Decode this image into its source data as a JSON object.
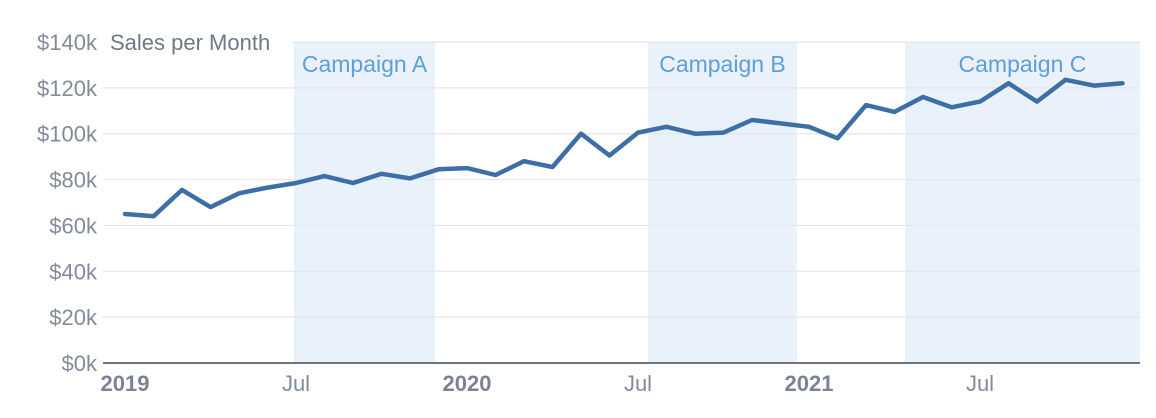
{
  "chart_data": {
    "type": "line",
    "title": "Sales per Month",
    "value_unit": "USD thousands",
    "months": [
      "Jan 2019",
      "Feb 2019",
      "Mar 2019",
      "Apr 2019",
      "May 2019",
      "Jun 2019",
      "Jul 2019",
      "Aug 2019",
      "Sep 2019",
      "Oct 2019",
      "Nov 2019",
      "Dec 2019",
      "Jan 2020",
      "Feb 2020",
      "Mar 2020",
      "Apr 2020",
      "May 2020",
      "Jun 2020",
      "Jul 2020",
      "Aug 2020",
      "Sep 2020",
      "Oct 2020",
      "Nov 2020",
      "Dec 2020",
      "Jan 2021",
      "Feb 2021",
      "Mar 2021",
      "Apr 2021",
      "May 2021",
      "Jun 2021",
      "Jul 2021",
      "Aug 2021",
      "Sep 2021",
      "Oct 2021",
      "Nov 2021",
      "Dec 2021"
    ],
    "series": [
      {
        "name": "Sales",
        "values_k": [
          65,
          64,
          75.5,
          68,
          74,
          76.5,
          78.5,
          81.5,
          78.5,
          82.5,
          80.5,
          84.5,
          85,
          82,
          88,
          85.5,
          100,
          90.5,
          100.5,
          103,
          100,
          100.5,
          106,
          104.5,
          103,
          98,
          112.5,
          109.5,
          116,
          111.5,
          114,
          122,
          114,
          123.5,
          121,
          122
        ]
      }
    ],
    "y_ticks": [
      {
        "value_k": 0,
        "label": "$0k"
      },
      {
        "value_k": 20,
        "label": "$20k"
      },
      {
        "value_k": 40,
        "label": "$40k"
      },
      {
        "value_k": 60,
        "label": "$60k"
      },
      {
        "value_k": 80,
        "label": "$80k"
      },
      {
        "value_k": 100,
        "label": "$100k"
      },
      {
        "value_k": 120,
        "label": "$120k"
      },
      {
        "value_k": 140,
        "label": "$140k"
      }
    ],
    "x_ticks": [
      {
        "month_index": 0,
        "label": "2019",
        "emphasis": true
      },
      {
        "month_index": 6,
        "label": "Jul",
        "emphasis": false
      },
      {
        "month_index": 12,
        "label": "2020",
        "emphasis": true
      },
      {
        "month_index": 18,
        "label": "Jul",
        "emphasis": false
      },
      {
        "month_index": 24,
        "label": "2021",
        "emphasis": true
      },
      {
        "month_index": 30,
        "label": "Jul",
        "emphasis": false
      }
    ],
    "bands": [
      {
        "label": "Campaign A",
        "start_month": 5.93,
        "end_month": 10.88
      },
      {
        "label": "Campaign B",
        "start_month": 18.35,
        "end_month": 23.58
      },
      {
        "label": "Campaign C",
        "start_month": 27.37,
        "end_month": 35.61
      }
    ],
    "ylim_k": [
      0,
      140
    ],
    "grid": "horizontal-only",
    "legend": "none",
    "colors": {
      "line": "#3d6fa6",
      "band_fill": "#e9f2fb",
      "band_label": "#5f9ed6",
      "gridline": "#e4e6e9",
      "axis_line": "#6d7480",
      "tick_label": "#828b99",
      "year_label": "#7b8392",
      "title": "#6f7888"
    }
  }
}
